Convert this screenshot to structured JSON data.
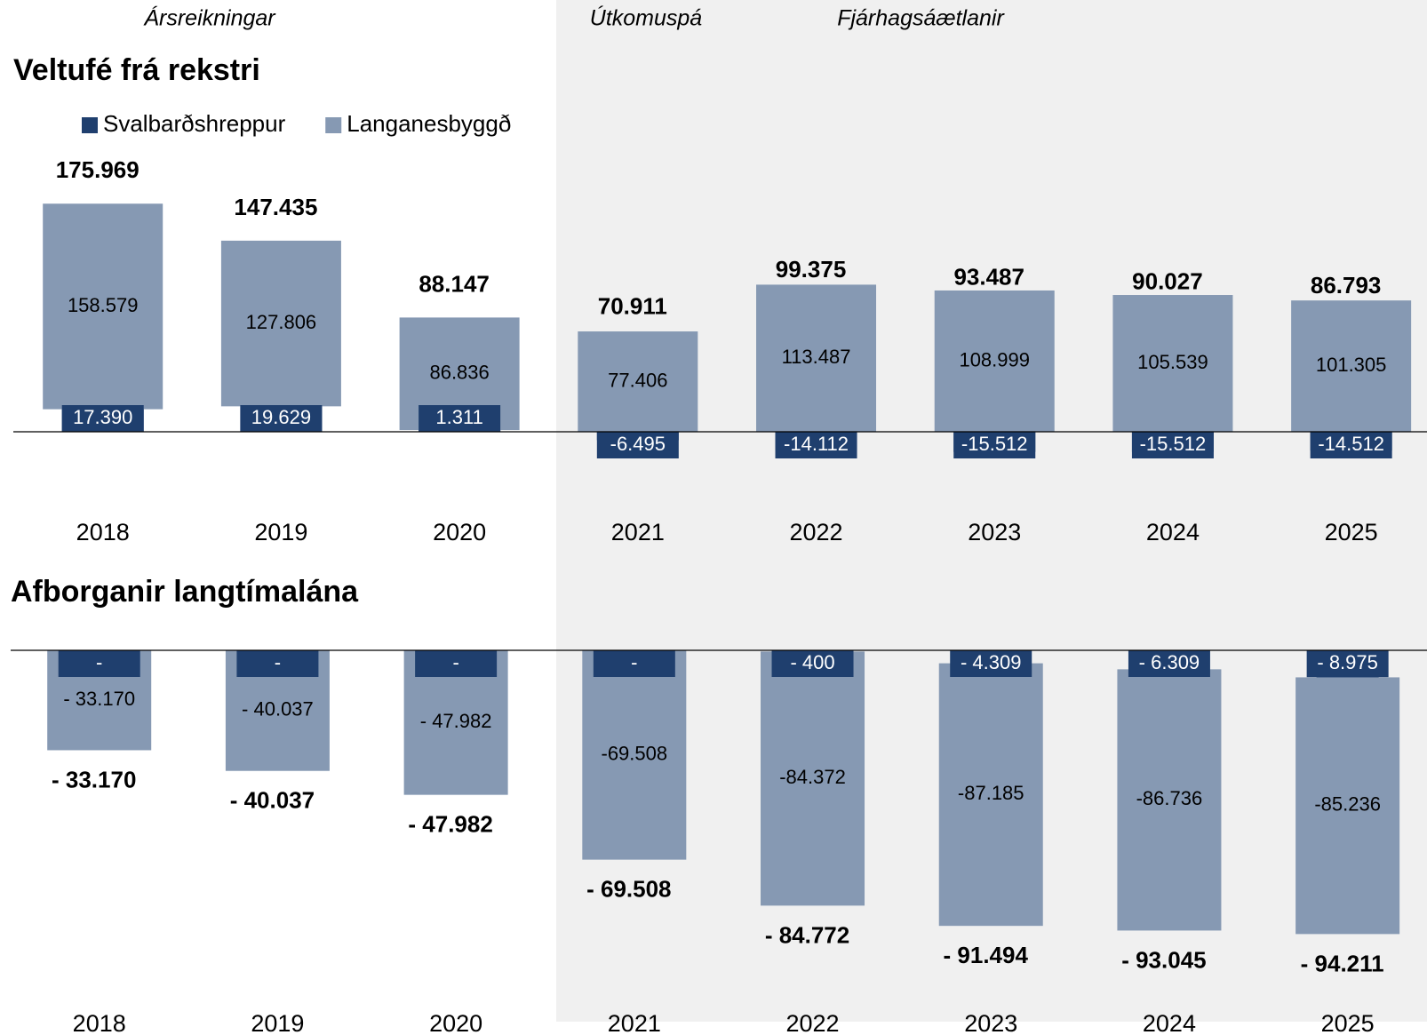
{
  "chart_data": [
    {
      "type": "bar",
      "title": "Veltufé frá rekstri",
      "annotations": [
        "Ársreikningar",
        "Útkomuspá",
        "Fjárhagsáætlanir"
      ],
      "categories": [
        "2018",
        "2019",
        "2020",
        "2021",
        "2022",
        "2023",
        "2024",
        "2025"
      ],
      "series": [
        {
          "name": "Svalbarðshreppur",
          "color": "#1f3f6e",
          "values": [
            17390,
            19629,
            1311,
            -6495,
            -14112,
            -15512,
            -15512,
            -14512
          ],
          "value_labels": [
            "17.390",
            "19.629",
            "1.311",
            "-6.495",
            "-14.112",
            "-15.512",
            "-15.512",
            "-14.512"
          ]
        },
        {
          "name": "Langanesbyggð",
          "color": "#8699b3",
          "values": [
            158579,
            127806,
            86836,
            77406,
            113487,
            108999,
            105539,
            101305
          ],
          "value_labels": [
            "158.579",
            "127.806",
            "86.836",
            "77.406",
            "113.487",
            "108.999",
            "105.539",
            "101.305"
          ]
        }
      ],
      "totals": {
        "values": [
          175969,
          147435,
          88147,
          70911,
          99375,
          93487,
          90027,
          86793
        ],
        "value_labels": [
          "175.969",
          "147.435",
          "88.147",
          "70.911",
          "99.375",
          "93.487",
          "90.027",
          "86.793"
        ]
      },
      "ylim": [
        -60000,
        200000
      ]
    },
    {
      "type": "bar",
      "title": "Afborganir langtímalána",
      "categories": [
        "2018",
        "2019",
        "2020",
        "2021",
        "2022",
        "2023",
        "2024",
        "2025"
      ],
      "series": [
        {
          "color": "#1f3f6e",
          "values": [
            0,
            0,
            0,
            0,
            -400,
            -4309,
            -6309,
            -8975
          ],
          "value_labels": [
            "-",
            "-",
            "-",
            "-",
            "- 400",
            "- 4.309",
            "- 6.309",
            "- 8.975"
          ]
        },
        {
          "color": "#8699b3",
          "values": [
            -33170,
            -40037,
            -47982,
            -69508,
            -84372,
            -87185,
            -86736,
            -85236
          ],
          "value_labels": [
            "- 33.170",
            "- 40.037",
            "- 47.982",
            "-69.508",
            "-84.372",
            "-87.185",
            "-86.736",
            "-85.236"
          ]
        }
      ],
      "totals": {
        "values": [
          -33170,
          -40037,
          -47982,
          -69508,
          -84772,
          -91494,
          -93045,
          -94211
        ],
        "value_labels": [
          "- 33.170",
          "- 40.037",
          "- 47.982",
          "- 69.508",
          "- 84.772",
          "- 91.494",
          "- 93.045",
          "- 94.211"
        ]
      },
      "ylim": [
        -110000,
        5000
      ]
    }
  ]
}
